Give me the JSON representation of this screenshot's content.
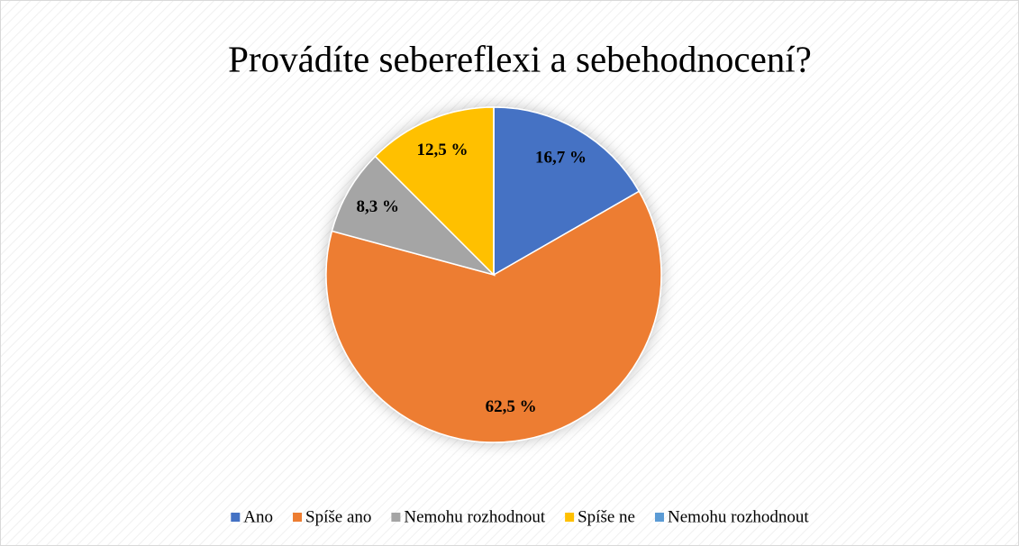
{
  "chart_data": {
    "type": "pie",
    "title": "Provádíte sebereflexi a sebehodnocení?",
    "categories": [
      "Ano",
      "Spíše ano",
      "Nemohu rozhodnout",
      "Spíše ne",
      "Nemohu rozhodnout"
    ],
    "values": [
      16.7,
      62.5,
      8.3,
      12.5,
      0
    ],
    "value_labels": [
      "16,7 %",
      "62,5 %",
      "8,3 %",
      "12,5 %",
      null
    ],
    "colors": [
      "#4472c4",
      "#ed7d31",
      "#a5a5a5",
      "#ffc000",
      "#5b9bd5"
    ],
    "legend": "bottom"
  }
}
